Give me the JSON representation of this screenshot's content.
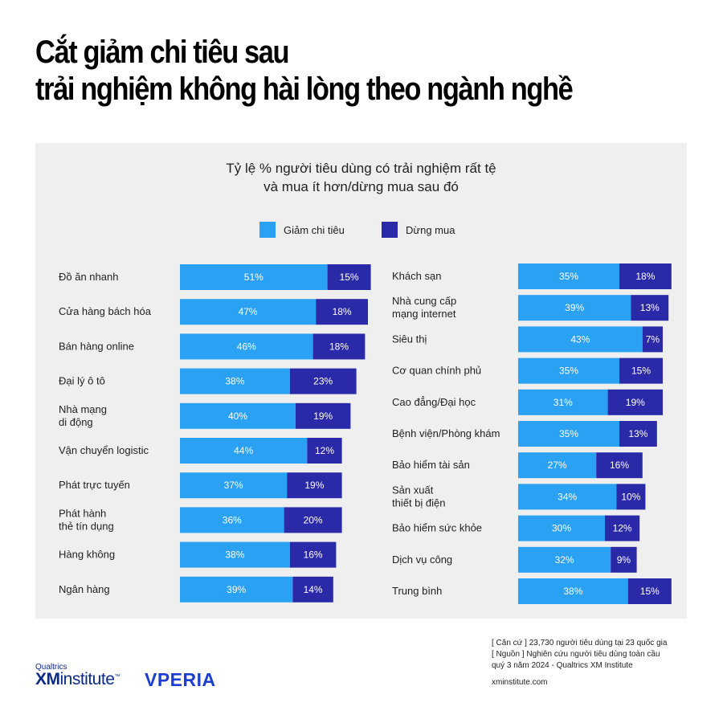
{
  "title": {
    "line1": "Cắt giảm chi tiêu sau",
    "line2": "trải nghiệm không hài lòng theo ngành nghề"
  },
  "subtitle": {
    "line1": "Tỷ lệ % người tiêu dùng có trải nghiệm rất tệ",
    "line2": "và mua ít hơn/dừng mua sau đó"
  },
  "legend": {
    "reduce": "Giảm chi tiêu",
    "stop": "Dừng mua"
  },
  "colors": {
    "reduce": "#2aa1f2",
    "stop": "#2a2aa8",
    "panel": "#efefef"
  },
  "chart_data": {
    "type": "bar",
    "orientation": "horizontal-stacked",
    "series": [
      {
        "name": "Giảm chi tiêu",
        "color": "#2aa1f2"
      },
      {
        "name": "Dừng mua",
        "color": "#2a2aa8"
      }
    ],
    "left": [
      {
        "label": [
          "Đồ ăn nhanh"
        ],
        "reduce": 51,
        "stop": 15
      },
      {
        "label": [
          "Cửa hàng bách hóa"
        ],
        "reduce": 47,
        "stop": 18
      },
      {
        "label": [
          "Bán hàng online"
        ],
        "reduce": 46,
        "stop": 18
      },
      {
        "label": [
          "Đại lý ô tô"
        ],
        "reduce": 38,
        "stop": 23
      },
      {
        "label": [
          "Nhà mạng",
          "di động"
        ],
        "reduce": 40,
        "stop": 19
      },
      {
        "label": [
          "Vận chuyển  logistic"
        ],
        "reduce": 44,
        "stop": 12
      },
      {
        "label": [
          "Phát trực tuyến"
        ],
        "reduce": 37,
        "stop": 19
      },
      {
        "label": [
          "Phát hành",
          "thẻ tín dụng"
        ],
        "reduce": 36,
        "stop": 20
      },
      {
        "label": [
          "Hàng không"
        ],
        "reduce": 38,
        "stop": 16
      },
      {
        "label": [
          "Ngân hàng"
        ],
        "reduce": 39,
        "stop": 14
      }
    ],
    "right": [
      {
        "label": [
          "Khách sạn"
        ],
        "reduce": 35,
        "stop": 18
      },
      {
        "label": [
          "Nhà cung cấp",
          "mạng internet"
        ],
        "reduce": 39,
        "stop": 13
      },
      {
        "label": [
          "Siêu thị"
        ],
        "reduce": 43,
        "stop": 7
      },
      {
        "label": [
          "Cơ quan chính phủ"
        ],
        "reduce": 35,
        "stop": 15
      },
      {
        "label": [
          "Cao đẳng/Đại học"
        ],
        "reduce": 31,
        "stop": 19
      },
      {
        "label": [
          "Bệnh viện/Phòng khám"
        ],
        "reduce": 35,
        "stop": 13
      },
      {
        "label": [
          "Bảo hiểm tài sản"
        ],
        "reduce": 27,
        "stop": 16
      },
      {
        "label": [
          "Sản xuất",
          "thiết bị điện"
        ],
        "reduce": 34,
        "stop": 10
      },
      {
        "label": [
          "Bảo hiểm sức khỏe"
        ],
        "reduce": 30,
        "stop": 12
      },
      {
        "label": [
          "Dịch vụ công"
        ],
        "reduce": 32,
        "stop": 9
      },
      {
        "label": [
          "Trung bình"
        ],
        "reduce": 38,
        "stop": 15
      }
    ]
  },
  "footer": {
    "logo_small": "Qualtrics",
    "logo_xm": "XM",
    "logo_institute": "institute",
    "logo_tm": "™",
    "logo_partner": "VPERIA",
    "note1": "[ Căn cứ ] 23,730 người tiêu dùng tại 23 quốc gia",
    "note2": "[ Nguồn ] Nghiên cứu người tiêu dùng toàn cầu",
    "note3": "quý 3 năm 2024 - Qualtrics XM Institute",
    "url": "xminstitute.com"
  }
}
